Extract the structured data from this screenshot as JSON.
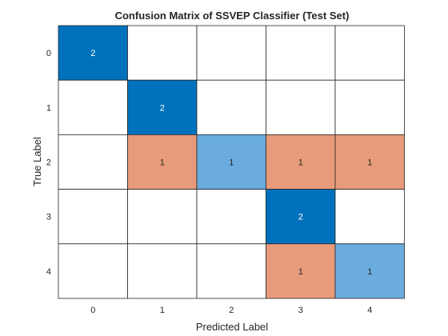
{
  "chart_data": {
    "type": "heatmap",
    "title": "Confusion Matrix of SSVEP Classifier (Test Set)",
    "xlabel": "Predicted Label",
    "ylabel": "True Label",
    "x_categories": [
      "0",
      "1",
      "2",
      "3",
      "4"
    ],
    "y_categories": [
      "0",
      "1",
      "2",
      "3",
      "4"
    ],
    "values": [
      [
        2,
        0,
        0,
        0,
        0
      ],
      [
        0,
        2,
        0,
        0,
        0
      ],
      [
        0,
        1,
        1,
        1,
        1
      ],
      [
        0,
        0,
        0,
        2,
        0
      ],
      [
        0,
        0,
        0,
        1,
        1
      ]
    ],
    "colors": {
      "correct_high": "#0072BD",
      "correct_low": "#6AACDD",
      "incorrect": "#E89B7B",
      "empty": "#FFFFFF",
      "label_on_dark": "#FFFFFF",
      "label_on_light": "#262626"
    }
  }
}
